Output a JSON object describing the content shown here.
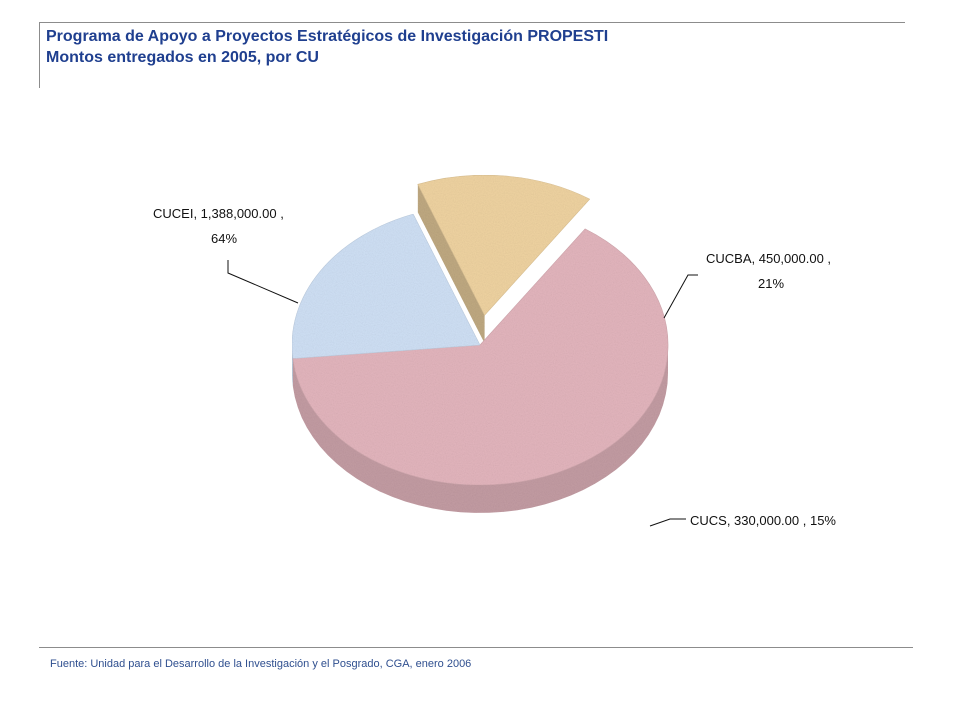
{
  "header": {
    "title": "Programa de Apoyo a Proyectos Estratégicos de Investigación PROPESTI",
    "subtitle": "Montos entregados en 2005, por CU"
  },
  "footer": {
    "source": "Fuente: Unidad para el Desarrollo de la Investigación y el Posgrado, CGA, enero 2006"
  },
  "colors": {
    "title": "#1f3f8f",
    "cucei": "#e3b5bd",
    "cucba": "#cfe0f5",
    "cucs": "#efd3a1"
  },
  "chart_data": {
    "type": "pie",
    "style": "3d-exploded",
    "series": [
      {
        "name": "CUCEI",
        "value": 1388000.0,
        "percent": 64,
        "label": "CUCEI,  1,388,000.00 ,",
        "label2": "64%",
        "color": "#e3b5bd"
      },
      {
        "name": "CUCBA",
        "value": 450000.0,
        "percent": 21,
        "label": "CUCBA,  450,000.00 ,",
        "label2": "21%",
        "color": "#cfe0f5"
      },
      {
        "name": "CUCS",
        "value": 330000.0,
        "percent": 15,
        "label": "CUCS,  330,000.00 , 15%",
        "label2": "",
        "color": "#efd3a1"
      }
    ]
  }
}
